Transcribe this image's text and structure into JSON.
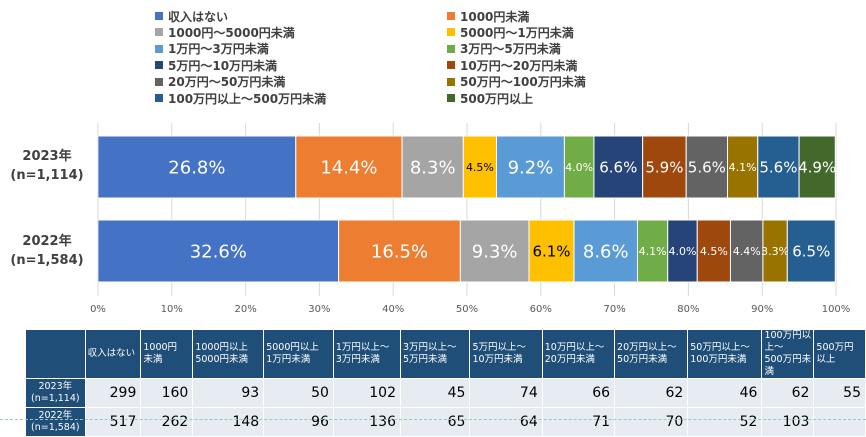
{
  "chart_data": {
    "type": "bar",
    "orientation": "horizontal",
    "stacked": true,
    "percent": true,
    "categories": [
      "2023年\n(n=1,114)",
      "2022年\n(n=1,584)"
    ],
    "series": [
      {
        "name": "収入はない",
        "color": "#4472c4",
        "values": [
          26.8,
          32.6
        ],
        "labels": [
          "26.8%",
          "32.6%"
        ]
      },
      {
        "name": "1000円未満",
        "color": "#ed7d31",
        "values": [
          14.4,
          16.5
        ],
        "labels": [
          "14.4%",
          "16.5%"
        ]
      },
      {
        "name": "1000円～5000円未満",
        "color": "#a5a5a5",
        "values": [
          8.3,
          9.3
        ],
        "labels": [
          "8.3%",
          "9.3%"
        ]
      },
      {
        "name": "5000円～1万円未満",
        "color": "#ffc000",
        "values": [
          4.5,
          6.1
        ],
        "labels": [
          "4.5%",
          "6.1%"
        ]
      },
      {
        "name": "1万円～3万円未満",
        "color": "#5b9bd5",
        "values": [
          9.2,
          8.6
        ],
        "labels": [
          "9.2%",
          "8.6%"
        ]
      },
      {
        "name": "3万円～5万円未満",
        "color": "#70ad47",
        "values": [
          4.0,
          4.1
        ],
        "labels": [
          "4.0%",
          "4.1%"
        ]
      },
      {
        "name": "5万円～10万円未満",
        "color": "#264478",
        "values": [
          6.6,
          4.0
        ],
        "labels": [
          "6.6%",
          "4.0%"
        ]
      },
      {
        "name": "10万円～20万円未満",
        "color": "#9e480e",
        "values": [
          5.9,
          4.5
        ],
        "labels": [
          "5.9%",
          "4.5%"
        ]
      },
      {
        "name": "20万円～50万円未満",
        "color": "#636363",
        "values": [
          5.6,
          4.4
        ],
        "labels": [
          "5.6%",
          "4.4%"
        ]
      },
      {
        "name": "50万円～100万円未満",
        "color": "#997300",
        "values": [
          4.1,
          3.3
        ],
        "labels": [
          "4.1%",
          "3.3%"
        ]
      },
      {
        "name": "100万円以上～500万円未満",
        "color": "#255e91",
        "values": [
          5.6,
          6.5
        ],
        "labels": [
          "5.6%",
          "6.5%"
        ]
      },
      {
        "name": "500万円以上",
        "color": "#43682b",
        "values": [
          4.9,
          0
        ],
        "labels": [
          "4.9%",
          ""
        ]
      }
    ],
    "xlim": [
      0,
      100
    ],
    "xticks": [
      "0%",
      "10%",
      "20%",
      "30%",
      "40%",
      "50%",
      "60%",
      "70%",
      "80%",
      "90%",
      "100%"
    ],
    "grid": true,
    "legend": "top"
  },
  "table": {
    "headers": [
      "収入はない",
      "1000円\n未満",
      "1000円以上\n5000円未満",
      "5000円以上\n1万円未満",
      "1万円以上～\n3万円未満",
      "3万円以上～\n5万円未満",
      "5万円以上～\n10万円未満",
      "10万円以上～\n20万円未満",
      "20万円以上～\n50万円未満",
      "50万円以上～\n100万円未満",
      "100万円以上～\n500万円未満",
      "500万円\n以上"
    ],
    "rows": [
      {
        "label": "2023年\n(n=1,114)",
        "values": [
          "299",
          "160",
          "93",
          "50",
          "102",
          "45",
          "74",
          "66",
          "62",
          "46",
          "62",
          "55"
        ]
      },
      {
        "label": "2022年\n(n=1,584)",
        "values": [
          "517",
          "262",
          "148",
          "96",
          "136",
          "65",
          "64",
          "71",
          "70",
          "52",
          "103",
          ""
        ]
      }
    ]
  }
}
